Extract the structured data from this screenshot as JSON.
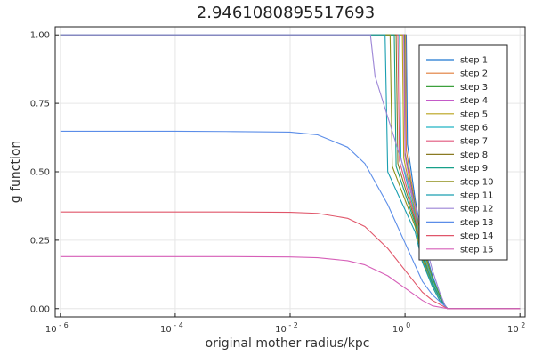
{
  "chart_data": {
    "type": "line",
    "title": "2.9461080895517693",
    "xlabel": "original mother radius/kpc",
    "ylabel": "g function",
    "xscale": "log10",
    "xlim": [
      1e-06,
      100
    ],
    "ylim": [
      0.0,
      1.0
    ],
    "x_ticks": [
      {
        "value": 1e-06,
        "base": "10",
        "exp": "- 6"
      },
      {
        "value": 0.0001,
        "base": "10",
        "exp": "- 4"
      },
      {
        "value": 0.01,
        "base": "10",
        "exp": "- 2"
      },
      {
        "value": 1,
        "base": "10",
        "exp": "0"
      },
      {
        "value": 100,
        "base": "10",
        "exp": "2"
      }
    ],
    "y_ticks": [
      {
        "value": 0.0,
        "label": "0.00"
      },
      {
        "value": 0.25,
        "label": "0.25"
      },
      {
        "value": 0.5,
        "label": "0.50"
      },
      {
        "value": 0.75,
        "label": "0.75"
      },
      {
        "value": 1.0,
        "label": "1.00"
      }
    ],
    "grid": true,
    "legend_position": "top-right",
    "series": [
      {
        "name": "step 1",
        "color": "#1f77d0",
        "x": [
          1e-06,
          1.02,
          1.05,
          1.1,
          1.5,
          2,
          3,
          4,
          5,
          5.5,
          100
        ],
        "y": [
          1.0,
          1.0,
          1.0,
          0.6,
          0.4,
          0.25,
          0.12,
          0.05,
          0.01,
          0.0,
          0.0
        ]
      },
      {
        "name": "step 2",
        "color": "#e07b39",
        "x": [
          1e-06,
          1.0,
          1.02,
          1.05,
          1.5,
          2,
          3,
          4,
          5,
          5.5,
          100
        ],
        "y": [
          1.0,
          1.0,
          1.0,
          0.58,
          0.38,
          0.24,
          0.11,
          0.05,
          0.01,
          0.0,
          0.0
        ]
      },
      {
        "name": "step 3",
        "color": "#3ca03c",
        "x": [
          1e-06,
          0.95,
          0.98,
          1.0,
          1.5,
          2,
          3,
          4,
          5,
          5.5,
          100
        ],
        "y": [
          1.0,
          1.0,
          1.0,
          0.57,
          0.37,
          0.23,
          0.11,
          0.05,
          0.01,
          0.0,
          0.0
        ]
      },
      {
        "name": "step 4",
        "color": "#c45ac8",
        "x": [
          1e-06,
          0.9,
          0.95,
          1.0,
          1.5,
          2,
          3,
          4,
          5,
          5.5,
          100
        ],
        "y": [
          1.0,
          1.0,
          1.0,
          0.56,
          0.36,
          0.22,
          0.1,
          0.04,
          0.01,
          0.0,
          0.0
        ]
      },
      {
        "name": "step 5",
        "color": "#b8a21a",
        "x": [
          1e-06,
          0.85,
          0.9,
          0.95,
          1.5,
          2,
          3,
          4,
          5,
          5.5,
          100
        ],
        "y": [
          1.0,
          1.0,
          1.0,
          0.55,
          0.35,
          0.22,
          0.1,
          0.04,
          0.01,
          0.0,
          0.0
        ]
      },
      {
        "name": "step 6",
        "color": "#21b5c4",
        "x": [
          1e-06,
          0.75,
          0.8,
          0.85,
          1.5,
          2,
          3,
          4,
          5,
          5.5,
          100
        ],
        "y": [
          1.0,
          1.0,
          1.0,
          0.55,
          0.34,
          0.21,
          0.1,
          0.04,
          0.01,
          0.0,
          0.0
        ]
      },
      {
        "name": "step 7",
        "color": "#e0567d",
        "x": [
          1e-06,
          0.7,
          0.75,
          0.8,
          1.5,
          2,
          3,
          4,
          5,
          5.5,
          100
        ],
        "y": [
          1.0,
          1.0,
          1.0,
          0.54,
          0.33,
          0.2,
          0.09,
          0.04,
          0.01,
          0.0,
          0.0
        ]
      },
      {
        "name": "step 8",
        "color": "#8a7a22",
        "x": [
          1e-06,
          0.65,
          0.7,
          0.75,
          1.5,
          2,
          3,
          4,
          5,
          5.5,
          100
        ],
        "y": [
          1.0,
          1.0,
          1.0,
          0.53,
          0.32,
          0.2,
          0.09,
          0.04,
          0.01,
          0.0,
          0.0
        ]
      },
      {
        "name": "step 9",
        "color": "#17a089",
        "x": [
          1e-06,
          0.6,
          0.65,
          0.7,
          1.5,
          2,
          3,
          4,
          5,
          5.5,
          100
        ],
        "y": [
          1.0,
          1.0,
          1.0,
          0.52,
          0.31,
          0.19,
          0.09,
          0.04,
          0.01,
          0.0,
          0.0
        ]
      },
      {
        "name": "step 10",
        "color": "#8f8f1a",
        "x": [
          1e-06,
          0.5,
          0.55,
          0.6,
          1.5,
          2,
          3,
          4,
          5,
          5.5,
          100
        ],
        "y": [
          1.0,
          1.0,
          1.0,
          0.52,
          0.3,
          0.18,
          0.08,
          0.03,
          0.01,
          0.0,
          0.0
        ]
      },
      {
        "name": "step 11",
        "color": "#1a9fb0",
        "x": [
          1e-06,
          0.4,
          0.45,
          0.5,
          1.5,
          2,
          3,
          4,
          5,
          5.5,
          100
        ],
        "y": [
          1.0,
          1.0,
          1.0,
          0.5,
          0.28,
          0.17,
          0.08,
          0.03,
          0.01,
          0.0,
          0.0
        ]
      },
      {
        "name": "step 12",
        "color": "#9b84d6",
        "x": [
          1e-06,
          0.2,
          0.25,
          0.3,
          0.5,
          1,
          2,
          3,
          4,
          5,
          5.5,
          100
        ],
        "y": [
          1.0,
          1.0,
          1.0,
          0.85,
          0.7,
          0.5,
          0.28,
          0.14,
          0.06,
          0.01,
          0.0,
          0.0
        ]
      },
      {
        "name": "step 13",
        "color": "#5b8de8",
        "x": [
          1e-06,
          0.0001,
          0.001,
          0.01,
          0.03,
          0.1,
          0.2,
          0.5,
          1,
          2,
          3,
          5.5,
          100
        ],
        "y": [
          0.648,
          0.648,
          0.647,
          0.645,
          0.635,
          0.59,
          0.53,
          0.38,
          0.24,
          0.1,
          0.05,
          0.0,
          0.0
        ]
      },
      {
        "name": "step 14",
        "color": "#e0566a",
        "x": [
          1e-06,
          0.001,
          0.01,
          0.03,
          0.1,
          0.2,
          0.5,
          1,
          2,
          3,
          5.5,
          100
        ],
        "y": [
          0.353,
          0.353,
          0.352,
          0.348,
          0.33,
          0.3,
          0.22,
          0.14,
          0.06,
          0.03,
          0.0,
          0.0
        ]
      },
      {
        "name": "step 15",
        "color": "#d65fb8",
        "x": [
          1e-06,
          0.001,
          0.01,
          0.03,
          0.1,
          0.2,
          0.5,
          1,
          2,
          3,
          5.5,
          100
        ],
        "y": [
          0.19,
          0.19,
          0.189,
          0.186,
          0.175,
          0.16,
          0.12,
          0.075,
          0.03,
          0.01,
          0.0,
          0.0
        ]
      }
    ]
  }
}
